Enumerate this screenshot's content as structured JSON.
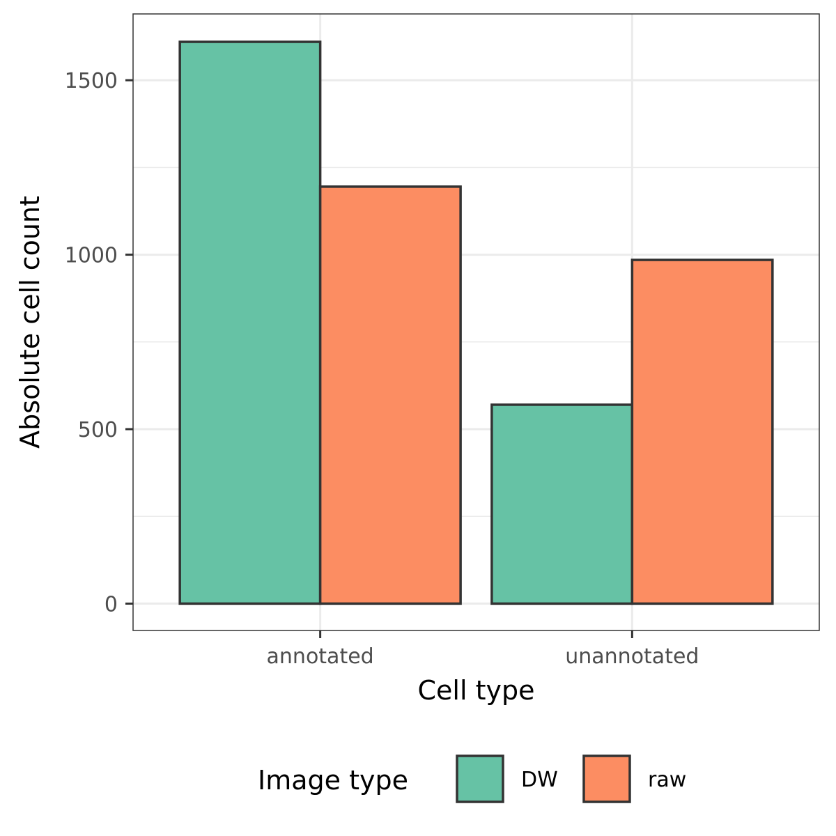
{
  "chart_data": {
    "type": "bar",
    "categories": [
      "annotated",
      "unannotated"
    ],
    "series": [
      {
        "name": "DW",
        "values": [
          1610,
          570
        ],
        "color": "#66c2a5"
      },
      {
        "name": "raw",
        "values": [
          1195,
          985
        ],
        "color": "#fc8d62"
      }
    ],
    "xlabel": "Cell type",
    "ylabel": "Absolute cell count",
    "ylim": [
      -77,
      1690
    ],
    "yticks": [
      0,
      500,
      1000,
      1500
    ],
    "grid": true,
    "legend": {
      "title": "Image type",
      "position": "bottom"
    }
  }
}
